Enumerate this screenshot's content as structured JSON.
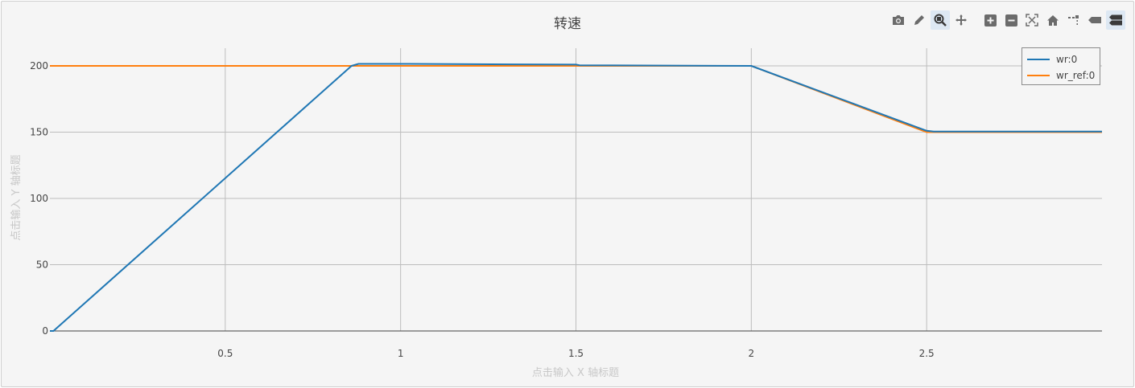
{
  "chart_data": {
    "type": "line",
    "title": "转速",
    "xlabel": "点击输入 X 轴标题",
    "ylabel": "点击输入 Y 轴标题",
    "xlim": [
      0,
      3
    ],
    "ylim": [
      0,
      200
    ],
    "x_ticks": [
      0.5,
      1,
      1.5,
      2,
      2.5
    ],
    "x_tick_labels": [
      "0.5",
      "1",
      "1.5",
      "2",
      "2.5"
    ],
    "y_ticks": [
      0,
      50,
      100,
      150,
      200
    ],
    "y_tick_labels": [
      "0",
      "50",
      "100",
      "150",
      "200"
    ],
    "grid": true,
    "legend_position": "top-right",
    "series": [
      {
        "name": "wr:0",
        "color": "#1f77b4",
        "x": [
          0,
          0.01,
          0.86,
          0.88,
          1.0,
          1.5,
          1.51,
          2.0,
          2.5,
          2.52,
          3.0
        ],
        "y": [
          0,
          0,
          200,
          201.5,
          201.5,
          201,
          200.5,
          200,
          151,
          150.5,
          150.5
        ]
      },
      {
        "name": "wr_ref:0",
        "color": "#ff7f0e",
        "x": [
          0,
          1.0,
          2.0,
          2.5,
          3.0
        ],
        "y": [
          200,
          200,
          200,
          150,
          150
        ]
      }
    ]
  },
  "toolbar": {
    "icons": [
      "camera-icon",
      "pencil-icon",
      "zoom-icon",
      "pan-icon",
      "zoom-in-icon",
      "zoom-out-icon",
      "autoscale-icon",
      "home-icon",
      "spike-lines-icon",
      "hover-closest-icon",
      "hover-compare-icon"
    ],
    "active": [
      "zoom-icon",
      "hover-compare-icon"
    ]
  }
}
